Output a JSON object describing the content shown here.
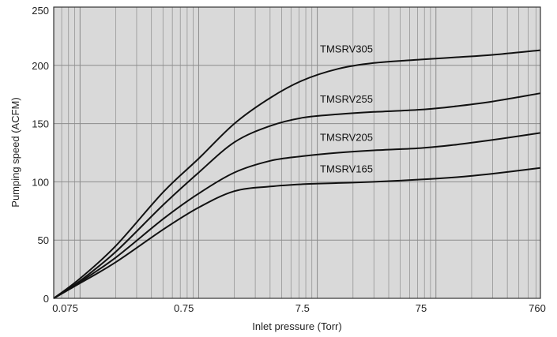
{
  "chart_data": {
    "type": "line",
    "xlabel": "Inlet pressure (Torr)",
    "ylabel": "Pumping speed (ACFM)",
    "x_scale": "log",
    "xlim": [
      0.06,
      760
    ],
    "ylim": [
      0,
      250
    ],
    "x_ticks": [
      0.075,
      0.75,
      7.5,
      75,
      760
    ],
    "x_tick_labels": [
      "0.075",
      "0.75",
      "7.5",
      "75",
      "760"
    ],
    "y_ticks": [
      0,
      50,
      100,
      150,
      200,
      250
    ],
    "y_tick_labels": [
      "0",
      "50",
      "100",
      "150",
      "200",
      "250"
    ],
    "grid": true,
    "colors": {
      "plot_bg": "#d9d9d9",
      "grid": "#8c8c8c",
      "line": "#111111",
      "axis": "#333333"
    },
    "series": [
      {
        "name": "TMSRV305",
        "x": [
          0.06,
          0.1,
          0.2,
          0.5,
          1,
          2,
          4,
          7.5,
          15,
          30,
          75,
          150,
          300,
          760
        ],
        "y": [
          0,
          17,
          45,
          91,
          120,
          150,
          172,
          187,
          197,
          202,
          205,
          207,
          209,
          213
        ]
      },
      {
        "name": "TMSRV255",
        "x": [
          0.06,
          0.1,
          0.2,
          0.5,
          1,
          2,
          4,
          7.5,
          15,
          30,
          75,
          150,
          300,
          760
        ],
        "y": [
          0,
          15,
          40,
          80,
          108,
          134,
          148,
          155,
          158,
          160,
          162,
          165,
          169,
          176
        ]
      },
      {
        "name": "TMSRV205",
        "x": [
          0.06,
          0.1,
          0.2,
          0.5,
          1,
          2,
          4,
          7.5,
          15,
          30,
          75,
          150,
          300,
          760
        ],
        "y": [
          0,
          14,
          35,
          68,
          90,
          108,
          118,
          122,
          125,
          127,
          129,
          132,
          136,
          142
        ]
      },
      {
        "name": "TMSRV165",
        "x": [
          0.06,
          0.1,
          0.2,
          0.5,
          1,
          2,
          4,
          7.5,
          15,
          30,
          75,
          150,
          300,
          760
        ],
        "y": [
          0,
          13,
          31,
          59,
          78,
          92,
          96,
          98,
          99,
          100,
          102,
          104,
          107,
          112
        ]
      }
    ]
  }
}
